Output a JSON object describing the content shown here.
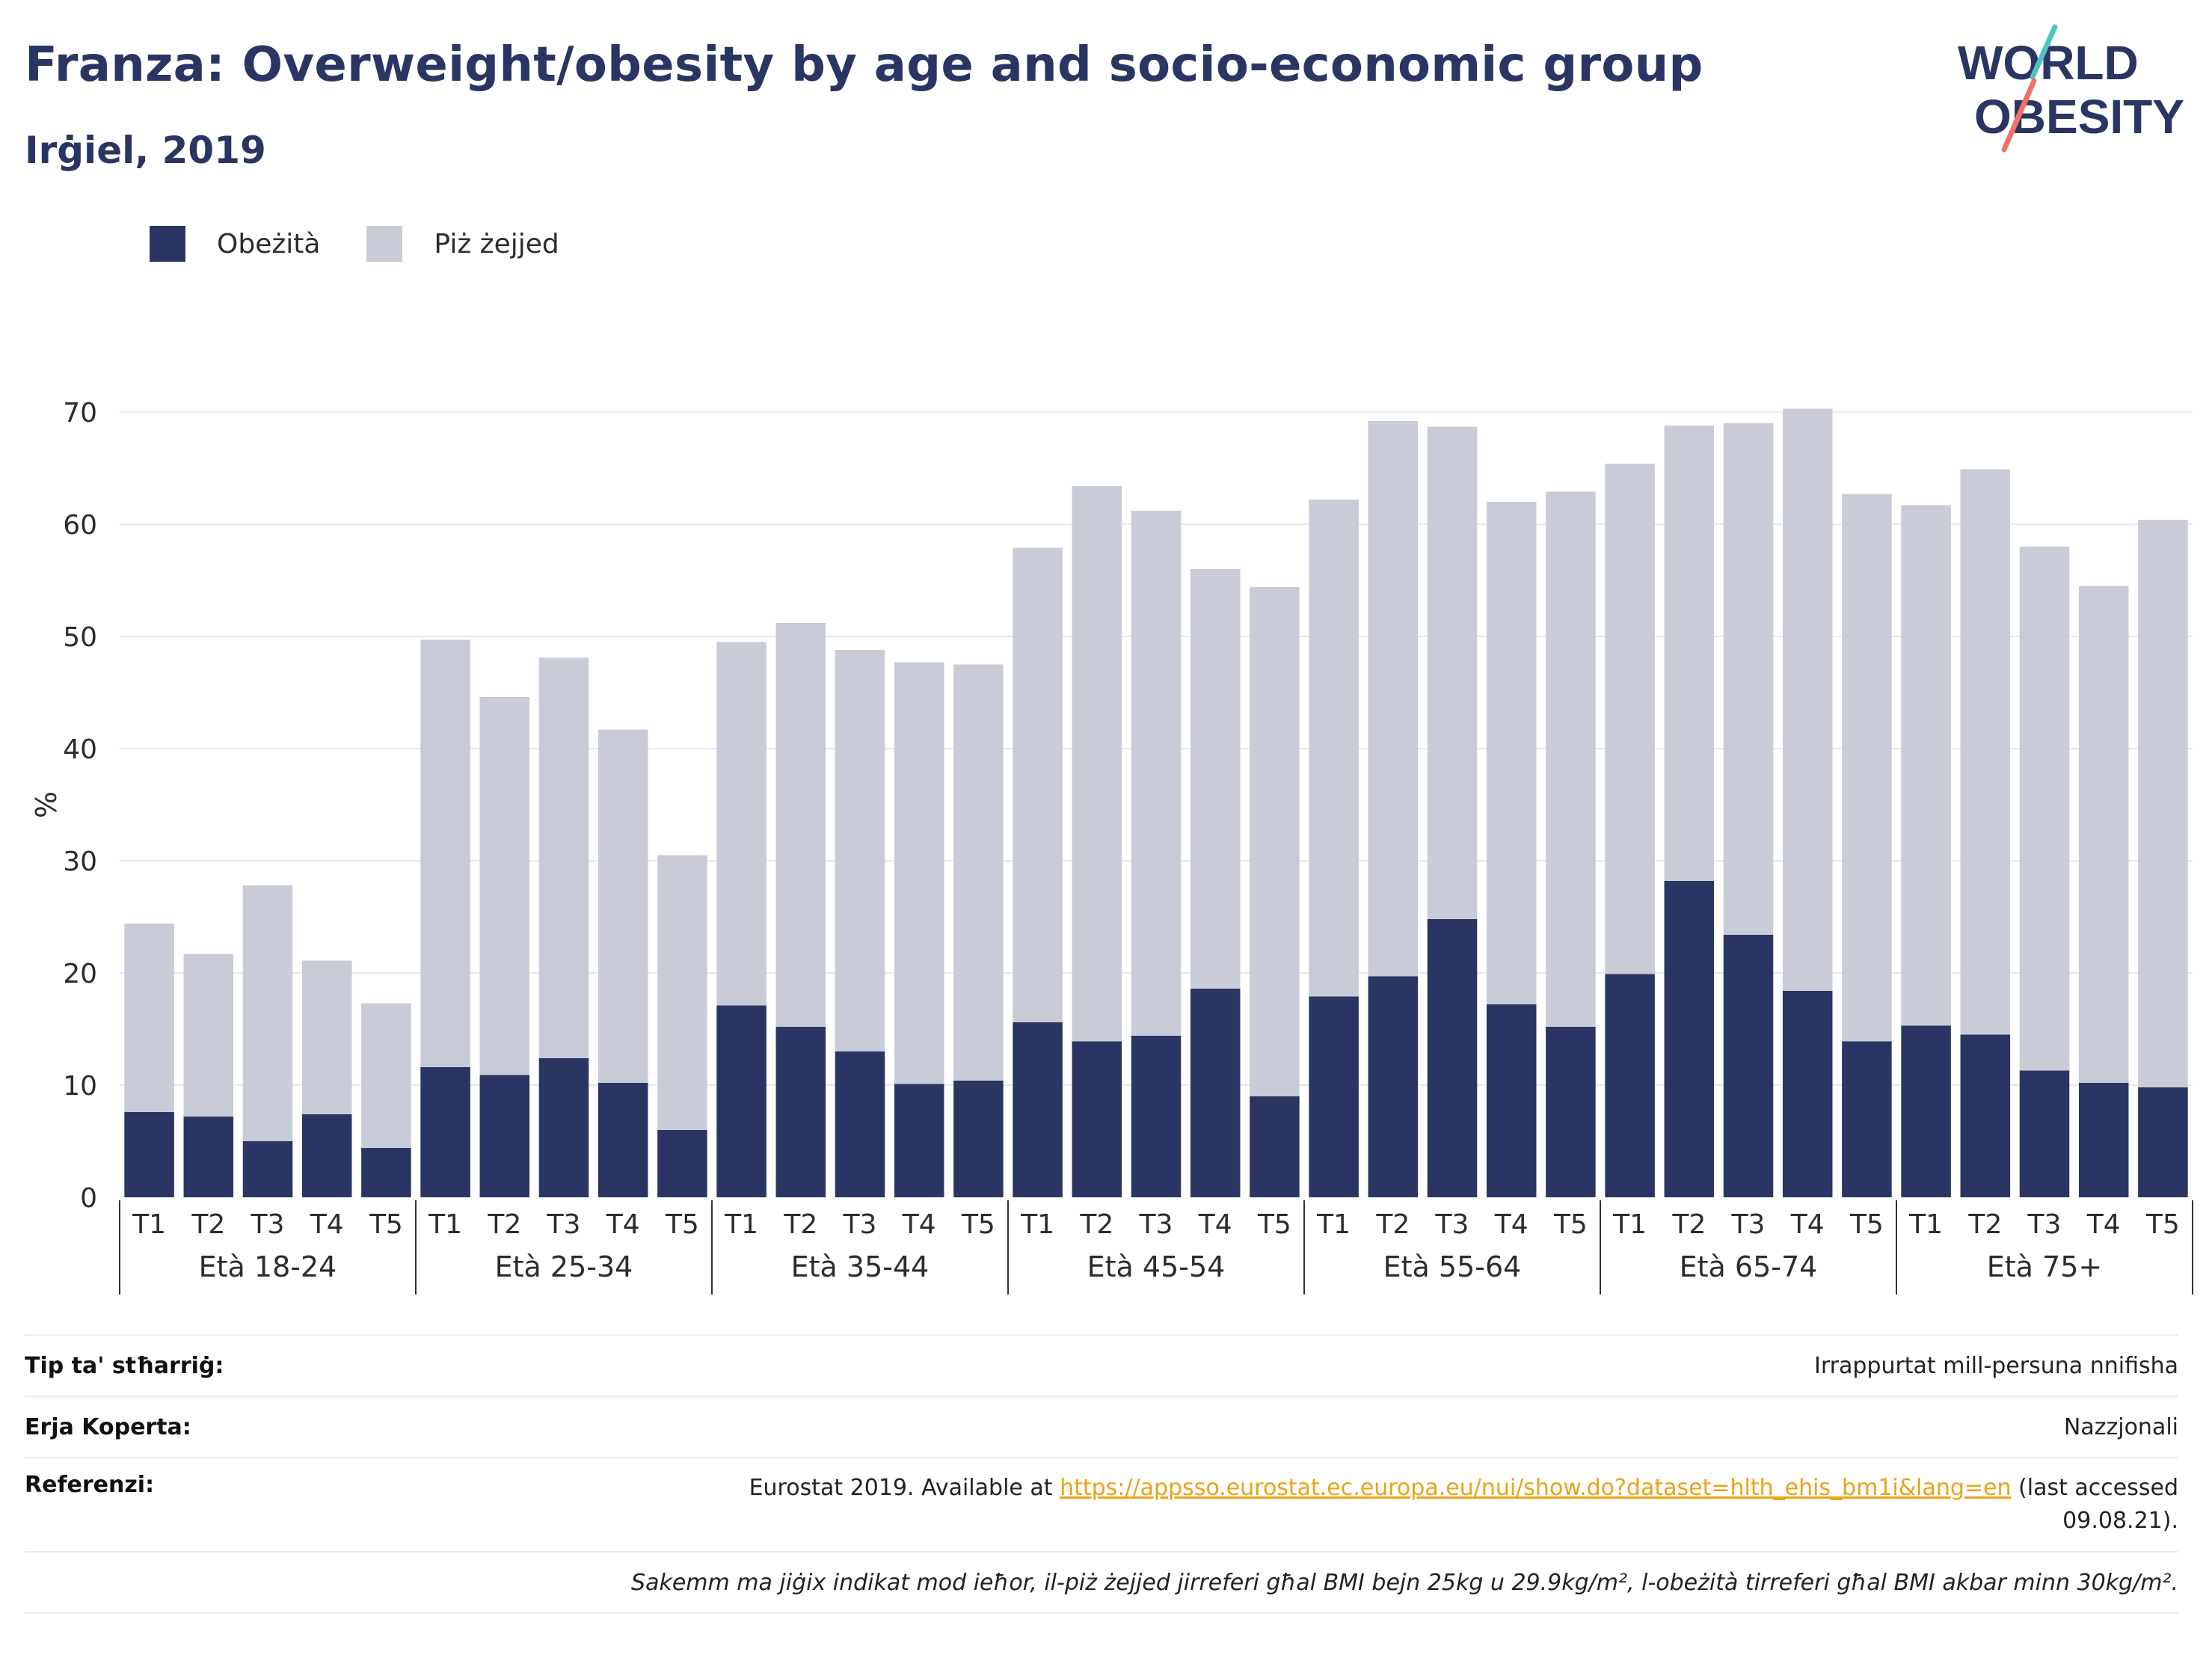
{
  "header": {
    "title": "Franza: Overweight/obesity by age and socio-economic group",
    "subtitle": "Irġiel, 2019"
  },
  "logo": {
    "line1": "WORLD",
    "line2": "OBESITY"
  },
  "colors": {
    "obese": "#2b3563",
    "overweight": "#c9cbd6",
    "title": "#2b3563",
    "link": "#e8a317"
  },
  "legend": [
    {
      "label": "Obeżità",
      "color": "#2b3563"
    },
    {
      "label": "Piż żejjed",
      "color": "#c9cbd6"
    }
  ],
  "chart_data": {
    "type": "bar",
    "stacked": true,
    "ylabel": "%",
    "ylim": [
      0,
      70
    ],
    "yticks": [
      0,
      10,
      20,
      30,
      40,
      50,
      60,
      70
    ],
    "grid": true,
    "legend_position": "top-left",
    "groups": [
      "Età 18-24",
      "Età 25-34",
      "Età 35-44",
      "Età 45-54",
      "Età 55-64",
      "Età 65-74",
      "Età 75+"
    ],
    "categories": [
      "T1",
      "T2",
      "T3",
      "T4",
      "T5"
    ],
    "series": [
      {
        "name": "Obeżità",
        "values": [
          [
            7.6,
            7.2,
            5.0,
            7.4,
            4.4
          ],
          [
            11.6,
            10.9,
            12.4,
            10.2,
            6.0
          ],
          [
            17.1,
            15.2,
            13.0,
            10.1,
            10.4
          ],
          [
            15.6,
            13.9,
            14.4,
            18.6,
            9.0
          ],
          [
            17.9,
            19.7,
            24.8,
            17.2,
            15.2
          ],
          [
            19.9,
            28.2,
            23.4,
            18.4,
            13.9
          ],
          [
            15.3,
            14.5,
            11.3,
            10.2,
            9.8
          ]
        ]
      },
      {
        "name": "Piż żejjed",
        "values": [
          [
            16.8,
            14.5,
            22.8,
            13.7,
            12.9
          ],
          [
            38.1,
            33.7,
            35.7,
            31.5,
            24.5
          ],
          [
            32.4,
            36.0,
            35.8,
            37.6,
            37.1
          ],
          [
            42.3,
            49.5,
            46.8,
            37.4,
            45.4
          ],
          [
            44.3,
            49.5,
            43.9,
            44.8,
            47.7
          ],
          [
            45.5,
            40.6,
            45.6,
            51.9,
            48.8
          ],
          [
            46.4,
            50.4,
            46.7,
            44.3,
            50.6
          ]
        ]
      }
    ]
  },
  "info": {
    "rows": [
      {
        "key": "Tip ta' stħarriġ:",
        "value": "Irrappurtat mill-persuna nnifisha"
      },
      {
        "key": "Erja Koperta:",
        "value": "Nazzjonali"
      }
    ],
    "reference": {
      "key": "Referenzi:",
      "prefix": "Eurostat 2019. Available at ",
      "link": "https://appsso.eurostat.ec.europa.eu/nui/show.do?dataset=hlth_ehis_bm1i&lang=en",
      "suffix_line1": " (last accessed",
      "suffix_line2": "09.08.21)."
    },
    "note": "Sakemm ma jiġix indikat mod ieħor, il-piż żejjed jirreferi għal BMI bejn 25kg u 29.9kg/m², l-obeżità tirreferi għal BMI akbar minn 30kg/m²."
  }
}
